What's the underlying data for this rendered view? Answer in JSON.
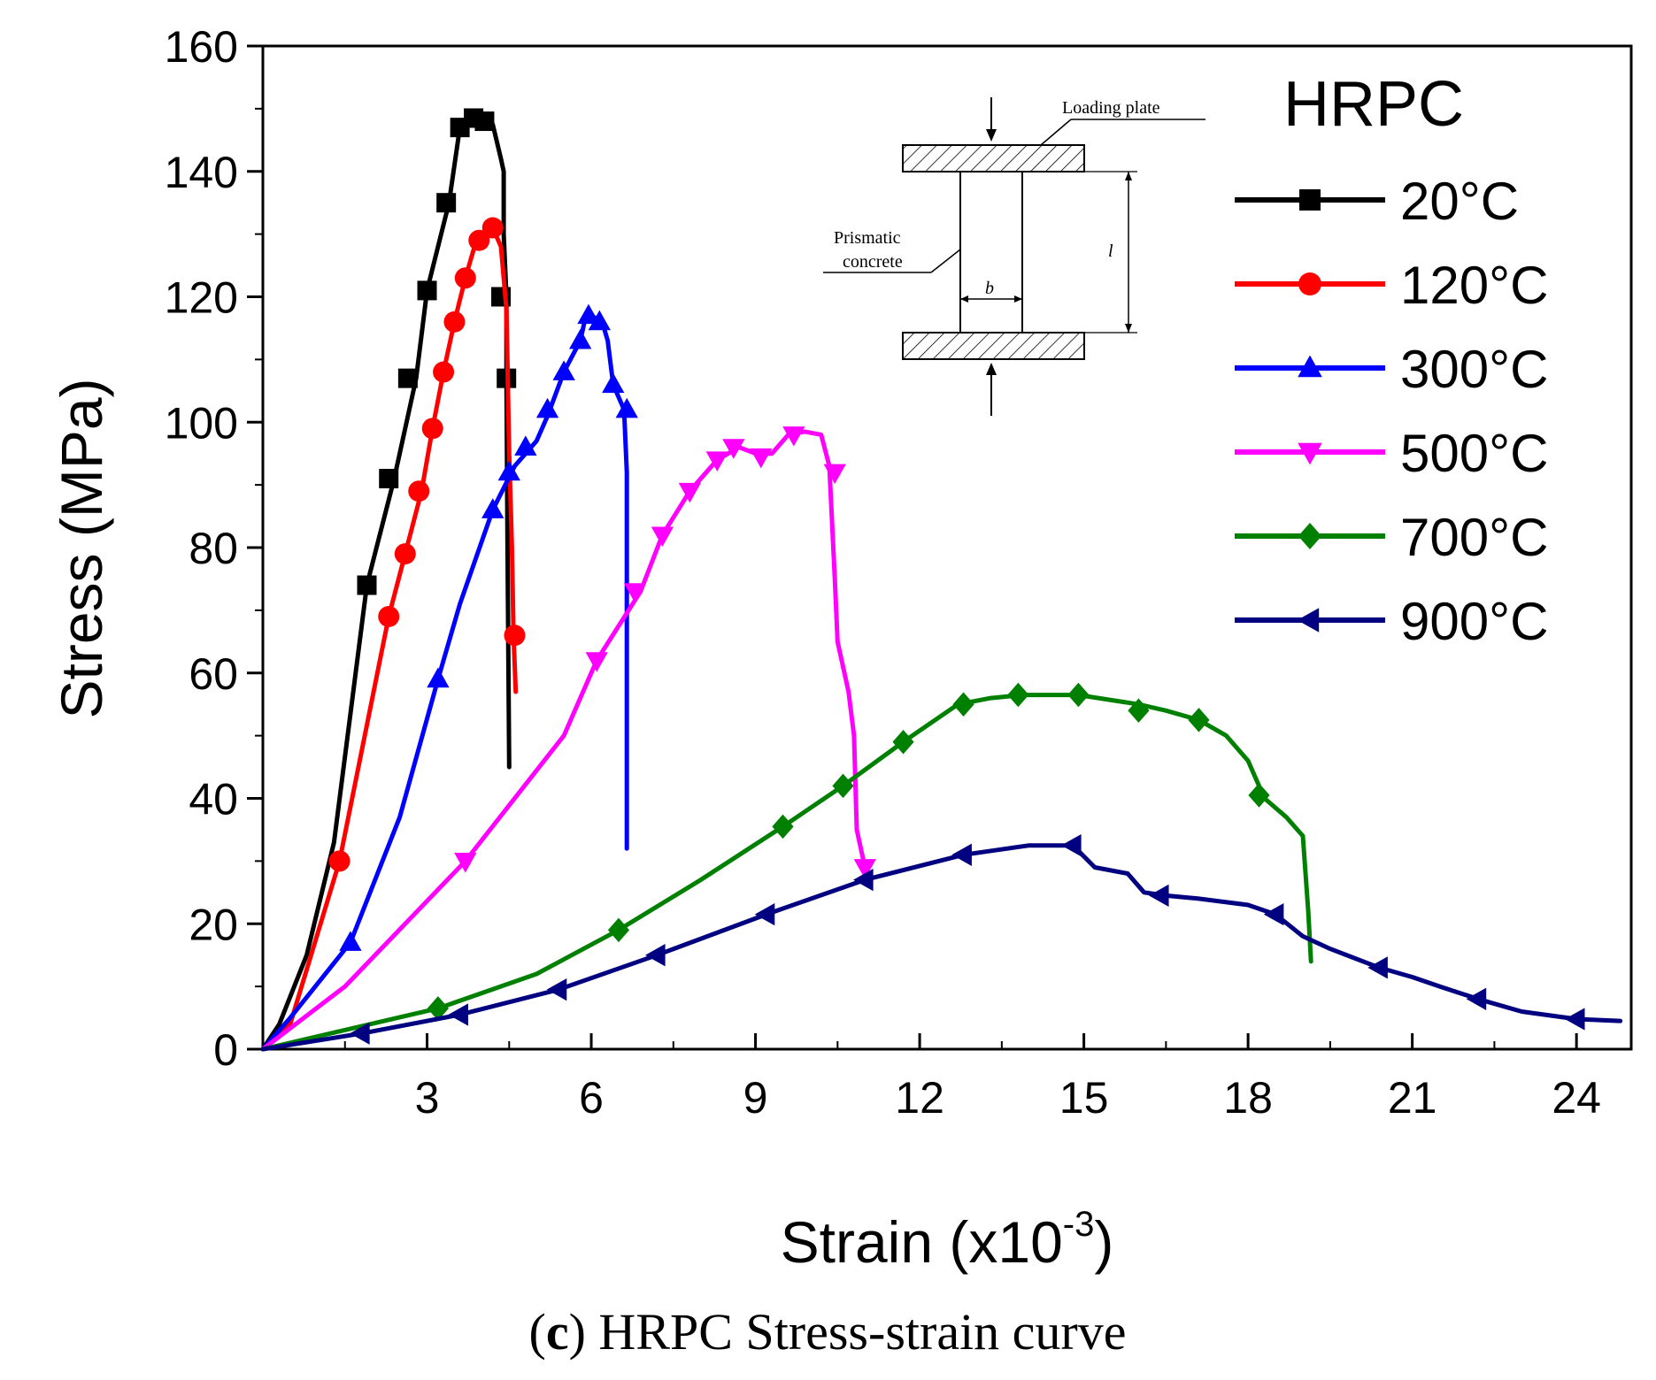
{
  "chart_data": {
    "type": "line",
    "title": "",
    "caption": {
      "letter": "c",
      "text": " HRPC Stress-strain curve"
    },
    "xlabel": {
      "prefix": "Strain (x10",
      "superscript": "-3",
      "suffix": ")"
    },
    "ylabel": "Stress (MPa)",
    "xlim": [
      0,
      25
    ],
    "ylim": [
      0,
      160
    ],
    "xticks": [
      3,
      6,
      9,
      12,
      15,
      18,
      21,
      24
    ],
    "yticks": [
      0,
      20,
      40,
      60,
      80,
      100,
      120,
      140,
      160
    ],
    "grid": false,
    "legend": {
      "title": "HRPC",
      "position": "top-right"
    },
    "series": [
      {
        "name": "20°C",
        "color": "#000000",
        "marker": "square",
        "line": [
          [
            0,
            0
          ],
          [
            0.3,
            4
          ],
          [
            0.8,
            15
          ],
          [
            1.3,
            33
          ],
          [
            1.9,
            74
          ],
          [
            2.4,
            91
          ],
          [
            2.8,
            107
          ],
          [
            3.0,
            121
          ],
          [
            3.4,
            135
          ],
          [
            3.6,
            147
          ],
          [
            3.8,
            148.5
          ],
          [
            4.0,
            148.5
          ],
          [
            4.2,
            147.5
          ],
          [
            4.35,
            142
          ],
          [
            4.4,
            140
          ],
          [
            4.4,
            130
          ],
          [
            4.45,
            120
          ],
          [
            4.45,
            107
          ],
          [
            4.47,
            80
          ],
          [
            4.5,
            45
          ]
        ],
        "markers": [
          [
            1.9,
            74
          ],
          [
            2.3,
            91
          ],
          [
            2.65,
            107
          ],
          [
            3.0,
            121
          ],
          [
            3.35,
            135
          ],
          [
            3.6,
            147
          ],
          [
            3.85,
            148.5
          ],
          [
            4.05,
            148
          ],
          [
            4.35,
            120
          ],
          [
            4.45,
            107
          ]
        ]
      },
      {
        "name": "120°C",
        "color": "#ff0000",
        "marker": "circle",
        "line": [
          [
            0,
            0
          ],
          [
            0.5,
            4
          ],
          [
            1.4,
            30
          ],
          [
            2.3,
            69
          ],
          [
            2.6,
            79
          ],
          [
            2.9,
            89
          ],
          [
            3.1,
            99
          ],
          [
            3.3,
            108
          ],
          [
            3.5,
            116
          ],
          [
            3.7,
            123
          ],
          [
            3.9,
            129
          ],
          [
            4.1,
            131
          ],
          [
            4.2,
            131
          ],
          [
            4.35,
            128
          ],
          [
            4.45,
            118
          ],
          [
            4.5,
            95
          ],
          [
            4.55,
            80
          ],
          [
            4.58,
            66
          ],
          [
            4.62,
            57
          ]
        ],
        "markers": [
          [
            1.4,
            30
          ],
          [
            2.3,
            69
          ],
          [
            2.6,
            79
          ],
          [
            2.85,
            89
          ],
          [
            3.1,
            99
          ],
          [
            3.3,
            108
          ],
          [
            3.5,
            116
          ],
          [
            3.7,
            123
          ],
          [
            3.95,
            129
          ],
          [
            4.2,
            131
          ],
          [
            4.6,
            66
          ]
        ]
      },
      {
        "name": "300°C",
        "color": "#0000ff",
        "marker": "triangle-up",
        "line": [
          [
            0,
            0
          ],
          [
            0.5,
            5
          ],
          [
            1.6,
            17
          ],
          [
            2.5,
            37
          ],
          [
            3.2,
            59
          ],
          [
            3.6,
            71
          ],
          [
            4.2,
            86
          ],
          [
            4.6,
            93
          ],
          [
            5.0,
            97
          ],
          [
            5.2,
            101
          ],
          [
            5.5,
            108
          ],
          [
            5.8,
            113
          ],
          [
            5.9,
            117
          ],
          [
            6.0,
            117
          ],
          [
            6.2,
            116
          ],
          [
            6.3,
            113
          ],
          [
            6.4,
            106
          ],
          [
            6.6,
            102
          ],
          [
            6.65,
            92
          ],
          [
            6.65,
            70
          ],
          [
            6.65,
            32
          ]
        ],
        "markers": [
          [
            1.6,
            17
          ],
          [
            3.2,
            59
          ],
          [
            4.2,
            86
          ],
          [
            4.5,
            92
          ],
          [
            4.8,
            96
          ],
          [
            5.2,
            102
          ],
          [
            5.5,
            108
          ],
          [
            5.8,
            113
          ],
          [
            5.95,
            117
          ],
          [
            6.15,
            116
          ],
          [
            6.4,
            106
          ],
          [
            6.65,
            102
          ]
        ]
      },
      {
        "name": "500°C",
        "color": "#ff00ff",
        "marker": "triangle-down",
        "line": [
          [
            0,
            0
          ],
          [
            1.5,
            10
          ],
          [
            3.7,
            30
          ],
          [
            5.5,
            50
          ],
          [
            6.1,
            62
          ],
          [
            6.9,
            73
          ],
          [
            7.3,
            82
          ],
          [
            7.8,
            89
          ],
          [
            8.3,
            94
          ],
          [
            8.7,
            96
          ],
          [
            9.0,
            95
          ],
          [
            9.3,
            95
          ],
          [
            9.6,
            98
          ],
          [
            9.9,
            98.5
          ],
          [
            10.2,
            98
          ],
          [
            10.35,
            93
          ],
          [
            10.45,
            75
          ],
          [
            10.5,
            65
          ],
          [
            10.7,
            57
          ],
          [
            10.8,
            50
          ],
          [
            10.85,
            35
          ],
          [
            11.0,
            29
          ]
        ],
        "markers": [
          [
            3.7,
            30
          ],
          [
            6.1,
            62
          ],
          [
            6.8,
            73
          ],
          [
            7.3,
            82
          ],
          [
            7.8,
            89
          ],
          [
            8.3,
            94
          ],
          [
            8.6,
            96
          ],
          [
            9.1,
            94.5
          ],
          [
            9.7,
            98
          ],
          [
            10.45,
            92
          ],
          [
            11.0,
            29
          ]
        ]
      },
      {
        "name": "700°C",
        "color": "#008000",
        "marker": "diamond",
        "line": [
          [
            0,
            0
          ],
          [
            3.2,
            6.5
          ],
          [
            5.0,
            12
          ],
          [
            6.5,
            19
          ],
          [
            8.0,
            27
          ],
          [
            9.5,
            35.5
          ],
          [
            10.6,
            42
          ],
          [
            11.7,
            49
          ],
          [
            12.7,
            55
          ],
          [
            13.3,
            56
          ],
          [
            13.9,
            56.5
          ],
          [
            14.9,
            56.5
          ],
          [
            16.0,
            55
          ],
          [
            16.5,
            54
          ],
          [
            17.1,
            52.5
          ],
          [
            17.6,
            50
          ],
          [
            18.0,
            46
          ],
          [
            18.3,
            40
          ],
          [
            18.7,
            37
          ],
          [
            19.0,
            34
          ],
          [
            19.1,
            22
          ],
          [
            19.15,
            14
          ]
        ],
        "markers": [
          [
            3.2,
            6.5
          ],
          [
            6.5,
            19
          ],
          [
            9.5,
            35.5
          ],
          [
            10.6,
            42
          ],
          [
            11.7,
            49
          ],
          [
            12.8,
            55
          ],
          [
            13.8,
            56.5
          ],
          [
            14.9,
            56.5
          ],
          [
            16.0,
            54
          ],
          [
            17.1,
            52.5
          ],
          [
            18.2,
            40.5
          ]
        ]
      },
      {
        "name": "900°C",
        "color": "#000080",
        "marker": "triangle-left",
        "line": [
          [
            0,
            0
          ],
          [
            1.8,
            2.5
          ],
          [
            3.6,
            5.5
          ],
          [
            5.4,
            9.5
          ],
          [
            7.2,
            15
          ],
          [
            9.2,
            21.5
          ],
          [
            11.0,
            27
          ],
          [
            12.8,
            31
          ],
          [
            14.0,
            32.5
          ],
          [
            14.8,
            32.5
          ],
          [
            15.2,
            29
          ],
          [
            15.8,
            28
          ],
          [
            16.1,
            25
          ],
          [
            16.5,
            24.5
          ],
          [
            17.1,
            24
          ],
          [
            18.0,
            23
          ],
          [
            18.5,
            21.5
          ],
          [
            19.0,
            18
          ],
          [
            19.5,
            16
          ],
          [
            20.4,
            13
          ],
          [
            21.0,
            11.5
          ],
          [
            21.5,
            10
          ],
          [
            22.2,
            8
          ],
          [
            23.0,
            6
          ],
          [
            24.0,
            4.8
          ],
          [
            24.8,
            4.5
          ]
        ],
        "markers": [
          [
            1.8,
            2.5
          ],
          [
            3.6,
            5.5
          ],
          [
            5.4,
            9.5
          ],
          [
            7.2,
            15
          ],
          [
            9.2,
            21.5
          ],
          [
            11.0,
            27
          ],
          [
            12.8,
            31
          ],
          [
            14.8,
            32.5
          ],
          [
            16.4,
            24.5
          ],
          [
            18.5,
            21.5
          ],
          [
            20.4,
            13
          ],
          [
            22.2,
            8
          ],
          [
            24.0,
            4.8
          ]
        ]
      }
    ],
    "inset": {
      "labels": {
        "loading_plate": "Loading plate",
        "prismatic": "Prismatic",
        "concrete": "concrete",
        "width": "b",
        "length": "l"
      }
    }
  }
}
